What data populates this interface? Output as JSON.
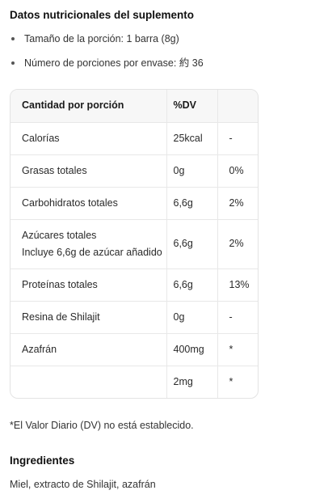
{
  "title": "Datos nutricionales del suplemento",
  "bullets": [
    "Tamaño de la porción: 1 barra (8g)",
    "Número de porciones por envase: 約 36"
  ],
  "table": {
    "headers": [
      "Cantidad por porción",
      "%DV",
      ""
    ],
    "rows": [
      {
        "name": "Calorías",
        "name2": "",
        "amount": "25kcal",
        "dv": "-"
      },
      {
        "name": "Grasas totales",
        "name2": "",
        "amount": "0g",
        "dv": "0%"
      },
      {
        "name": "Carbohidratos totales",
        "name2": "",
        "amount": "6,6g",
        "dv": "2%"
      },
      {
        "name": "Azúcares totales",
        "name2": "Incluye 6,6g de azúcar añadido",
        "amount": "6,6g",
        "dv": "2%"
      },
      {
        "name": "Proteínas totales",
        "name2": "",
        "amount": "6,6g",
        "dv": "13%"
      },
      {
        "name": "Resina de Shilajit",
        "name2": "",
        "amount": "0g",
        "dv": "-"
      },
      {
        "name": "Azafrán",
        "name2": "",
        "amount": "400mg",
        "dv": "*"
      },
      {
        "name": "",
        "name2": "",
        "amount": "2mg",
        "dv": "*"
      }
    ]
  },
  "footnote": "*El Valor Diario (DV) no está establecido.",
  "ingredients": {
    "title": "Ingredientes",
    "text": "Miel, extracto de Shilajit, azafrán"
  }
}
